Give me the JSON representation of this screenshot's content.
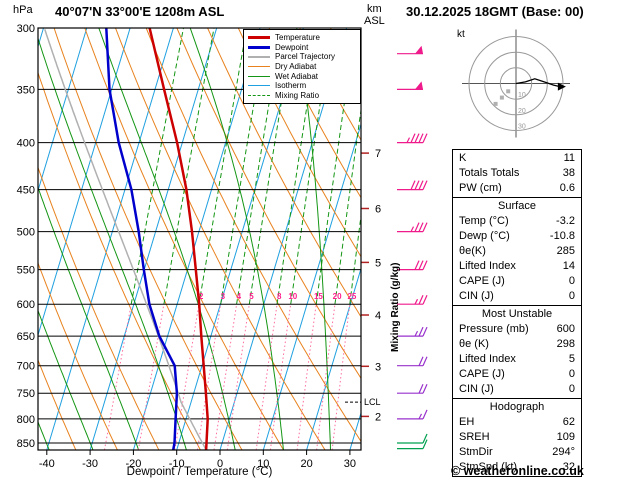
{
  "header": {
    "station_title": "40°07'N 33°00'E 1208m ASL",
    "datetime_title": "30.12.2025 18GMT (Base: 00)"
  },
  "axes": {
    "pressure_unit": "hPa",
    "pressure_ticks": [
      300,
      350,
      400,
      450,
      500,
      550,
      600,
      650,
      700,
      750,
      800,
      850
    ],
    "temp_ticks": [
      -40,
      -30,
      -20,
      -10,
      0,
      10,
      20,
      30
    ],
    "xlabel": "Dewpoint / Temperature (°C)",
    "km_unit_top": "km",
    "km_unit_bottom": "ASL",
    "km_ticks": [
      7,
      6,
      5,
      4,
      3,
      2
    ],
    "mixing_ratio_axis_label": "Mixing Ratio (g/kg)",
    "lcl_label": "LCL"
  },
  "colors": {
    "temperature": "#cc0000",
    "dewpoint": "#0000cc",
    "parcel": "#b0b0b0",
    "dry_adiabat": "#e8821e",
    "wet_adiabat": "#149614",
    "isotherm": "#1fa0e0",
    "mixing_ratio": "#149614",
    "mixing_ratio_low": "#ff6e9e",
    "mixing_label": "#ff1e8c",
    "isobar": "#000000",
    "km_tick": "#b22222"
  },
  "legend": [
    {
      "label": "Temperature",
      "color": "#cc0000",
      "dash": "solid",
      "weight": 3
    },
    {
      "label": "Dewpoint",
      "color": "#0000cc",
      "dash": "solid",
      "weight": 3
    },
    {
      "label": "Parcel Trajectory",
      "color": "#b0b0b0",
      "dash": "solid",
      "weight": 2
    },
    {
      "label": "Dry Adiabat",
      "color": "#e8821e",
      "dash": "solid",
      "weight": 1
    },
    {
      "label": "Wet Adiabat",
      "color": "#149614",
      "dash": "solid",
      "weight": 1
    },
    {
      "label": "Isotherm",
      "color": "#1fa0e0",
      "dash": "solid",
      "weight": 1
    },
    {
      "label": "Mixing Ratio",
      "color": "#149614",
      "dash": "dashed",
      "weight": 1
    }
  ],
  "chart_data": {
    "type": "line",
    "subtype": "skew-t-log-p",
    "pressure_levels": [
      865,
      850,
      800,
      750,
      700,
      650,
      600,
      550,
      500,
      450,
      400,
      350,
      300
    ],
    "temperature": [
      -3.2,
      -3.6,
      -5.0,
      -7.2,
      -9.6,
      -12.2,
      -14.9,
      -18.1,
      -21.6,
      -25.8,
      -31.2,
      -37.9,
      -45.5
    ],
    "dewpoint": [
      -10.8,
      -11.0,
      -12.4,
      -13.9,
      -16.3,
      -21.9,
      -26.4,
      -30.1,
      -33.9,
      -38.5,
      -44.7,
      -50.5,
      -55.5
    ],
    "surface": {
      "pressure": 865,
      "temp": -3.2,
      "dewp": -10.8
    },
    "isotherm_range": [
      -100,
      40,
      10
    ],
    "dry_adiabat_theta_K": [
      240,
      440,
      10
    ],
    "wet_adiabat_thetaw_C": [
      -40,
      40,
      10
    ],
    "mixing_ratio_lines": [
      0.5,
      1,
      2,
      3,
      4,
      5,
      8,
      10,
      15,
      20,
      25
    ],
    "mixing_ratio_labels": [
      2,
      3,
      4,
      5,
      8,
      10,
      15,
      20,
      25
    ],
    "winds": [
      {
        "p": 320,
        "kt": 50,
        "color": "#ef1a8b"
      },
      {
        "p": 350,
        "kt": 50,
        "color": "#ef1a8b"
      },
      {
        "p": 400,
        "kt": 45,
        "color": "#ef1a8b"
      },
      {
        "p": 450,
        "kt": 40,
        "color": "#ef1a8b"
      },
      {
        "p": 500,
        "kt": 35,
        "color": "#ef1a8b"
      },
      {
        "p": 550,
        "kt": 30,
        "color": "#ef1a8b"
      },
      {
        "p": 600,
        "kt": 25,
        "color": "#ef1a8b"
      },
      {
        "p": 650,
        "kt": 25,
        "color": "#9932cc"
      },
      {
        "p": 700,
        "kt": 20,
        "color": "#9932cc"
      },
      {
        "p": 750,
        "kt": 20,
        "color": "#9932cc"
      },
      {
        "p": 800,
        "kt": 15,
        "color": "#9932cc"
      },
      {
        "p": 850,
        "kt": 10,
        "color": "#00a050"
      },
      {
        "p": 862,
        "kt": 10,
        "color": "#00a050"
      }
    ],
    "hodograph": {
      "unit_label": "kt",
      "rings_kt": [
        10,
        20,
        30
      ],
      "trace_kt": [
        [
          0,
          0
        ],
        [
          6,
          1
        ],
        [
          12,
          3
        ],
        [
          18,
          1
        ],
        [
          24,
          -1
        ],
        [
          28,
          -2
        ]
      ],
      "marker_offsets_kt": [
        [
          -5,
          -5
        ],
        [
          -9,
          -9
        ],
        [
          -13,
          -13
        ]
      ]
    }
  },
  "stats": {
    "boxes": [
      {
        "title": "",
        "rows": [
          [
            "K",
            "11"
          ],
          [
            "Totals Totals",
            "38"
          ],
          [
            "PW (cm)",
            "0.6"
          ]
        ]
      },
      {
        "title": "Surface",
        "rows": [
          [
            "Temp (°C)",
            "-3.2"
          ],
          [
            "Dewp (°C)",
            "-10.8"
          ],
          [
            "θe(K)",
            "285"
          ],
          [
            "Lifted Index",
            "14"
          ],
          [
            "CAPE (J)",
            "0"
          ],
          [
            "CIN (J)",
            "0"
          ]
        ]
      },
      {
        "title": "Most Unstable",
        "rows": [
          [
            "Pressure (mb)",
            "600"
          ],
          [
            "θe (K)",
            "298"
          ],
          [
            "Lifted Index",
            "5"
          ],
          [
            "CAPE (J)",
            "0"
          ],
          [
            "CIN (J)",
            "0"
          ]
        ]
      },
      {
        "title": "Hodograph",
        "rows": [
          [
            "EH",
            "62"
          ],
          [
            "SREH",
            "109"
          ],
          [
            "StmDir",
            "294°"
          ],
          [
            "StmSpd (kt)",
            "32"
          ]
        ]
      }
    ]
  },
  "footer": {
    "copyright": "© weatheronline.co.uk"
  }
}
